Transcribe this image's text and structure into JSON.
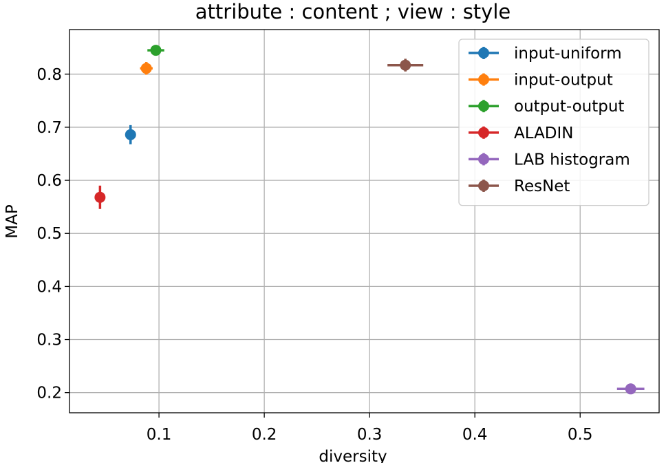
{
  "chart_data": {
    "type": "scatter",
    "title": "attribute : content ; view : style",
    "xlabel": "diversity",
    "ylabel": "MAP",
    "xlim": [
      0.015,
      0.575
    ],
    "ylim": [
      0.162,
      0.884
    ],
    "xticks": [
      0.1,
      0.2,
      0.3,
      0.4,
      0.5
    ],
    "xtick_labels": [
      "0.1",
      "0.2",
      "0.3",
      "0.4",
      "0.5"
    ],
    "yticks": [
      0.2,
      0.3,
      0.4,
      0.5,
      0.6,
      0.7,
      0.8
    ],
    "ytick_labels": [
      "0.2",
      "0.3",
      "0.4",
      "0.5",
      "0.6",
      "0.7",
      "0.8"
    ],
    "grid": true,
    "legend_position": "top-right",
    "series": [
      {
        "name": "input-uniform",
        "color": "#1f77b4",
        "x": 0.073,
        "y": 0.686,
        "xerr": 0.005,
        "yerr": 0.018
      },
      {
        "name": "input-output",
        "color": "#ff7f0e",
        "x": 0.088,
        "y": 0.811,
        "xerr": 0.006,
        "yerr": 0.012
      },
      {
        "name": "output-output",
        "color": "#2ca02c",
        "x": 0.097,
        "y": 0.845,
        "xerr": 0.008,
        "yerr": 0.008
      },
      {
        "name": "ALADIN",
        "color": "#d62728",
        "x": 0.044,
        "y": 0.568,
        "xerr": 0.003,
        "yerr": 0.022
      },
      {
        "name": "LAB histogram",
        "color": "#9467bd",
        "x": 0.548,
        "y": 0.207,
        "xerr": 0.013,
        "yerr": 0.008
      },
      {
        "name": "ResNet",
        "color": "#8c564b",
        "x": 0.334,
        "y": 0.817,
        "xerr": 0.017,
        "yerr": 0.012
      }
    ]
  }
}
